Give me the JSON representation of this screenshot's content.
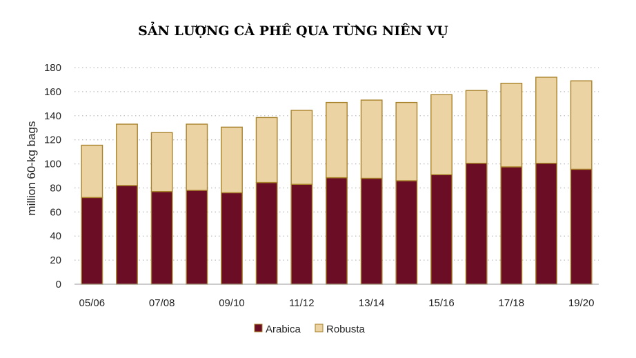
{
  "chart_data": {
    "type": "bar",
    "stacked": true,
    "title": "SẢN LƯỢNG CÀ PHÊ QUA TỪNG NIÊN VỤ",
    "ylabel": "million 60-kg bags",
    "xlabel": "",
    "ylim": [
      0,
      180
    ],
    "yticks": [
      0,
      20,
      40,
      60,
      80,
      100,
      120,
      140,
      160,
      180
    ],
    "grid": true,
    "legend_position": "bottom-center",
    "categories": [
      "05/06",
      "06/07",
      "07/08",
      "08/09",
      "09/10",
      "10/11",
      "11/12",
      "12/13",
      "13/14",
      "14/15",
      "15/16",
      "16/17",
      "17/18",
      "18/19",
      "19/20"
    ],
    "tick_labels": [
      "05/06",
      "",
      "07/08",
      "",
      "09/10",
      "",
      "11/12",
      "",
      "13/14",
      "",
      "15/16",
      "",
      "17/18",
      "",
      "19/20"
    ],
    "series": [
      {
        "name": "Arabica",
        "color": "#6b0d24",
        "values": [
          72,
          82,
          77,
          78,
          76,
          84.5,
          83,
          88.5,
          88,
          86,
          91,
          100.5,
          97.5,
          100.5,
          95.5
        ]
      },
      {
        "name": "Robusta",
        "color": "#ecd3a3",
        "values": [
          43.5,
          51,
          49,
          55,
          54.5,
          54,
          61.5,
          62.5,
          65,
          65,
          66.5,
          60.5,
          69.5,
          71.5,
          73.5
        ]
      }
    ],
    "bar_outline_color": "#a8822a"
  }
}
